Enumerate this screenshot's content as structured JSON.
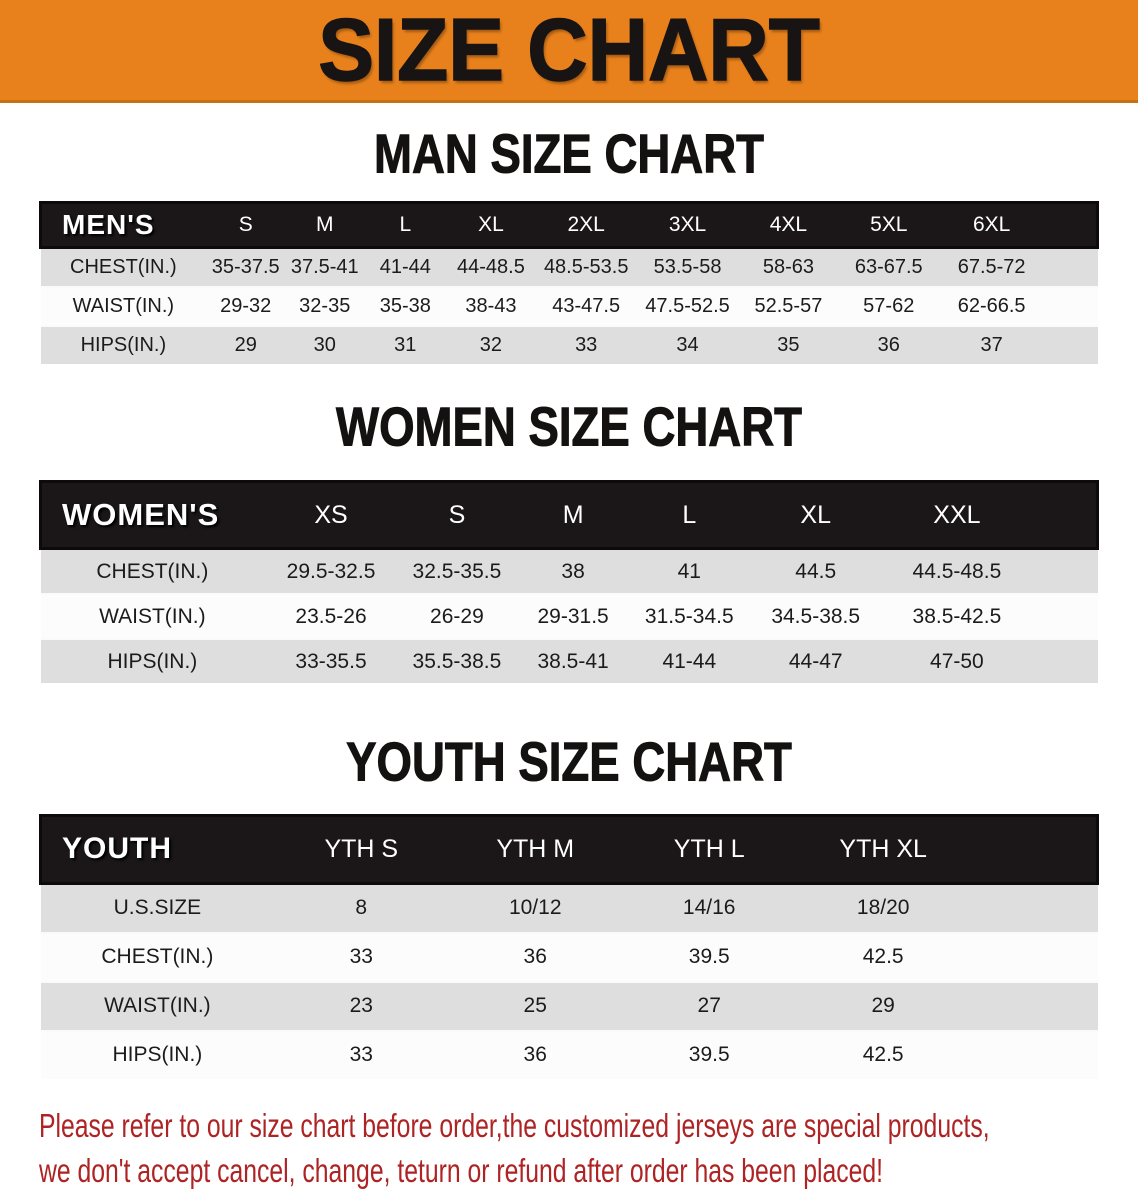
{
  "banner": {
    "title": "SIZE CHART",
    "bg_color": "#E8811C"
  },
  "sections": [
    {
      "id": "men",
      "heading": "MAN SIZE CHART",
      "table": {
        "corner_label": "MEN'S",
        "columns": [
          "S",
          "M",
          "L",
          "XL",
          "2XL",
          "3XL",
          "4XL",
          "5XL",
          "6XL"
        ],
        "rows": [
          {
            "label": "CHEST(IN.)",
            "values": [
              "35-37.5",
              "37.5-41",
              "41-44",
              "44-48.5",
              "48.5-53.5",
              "53.5-58",
              "58-63",
              "63-67.5",
              "67.5-72"
            ]
          },
          {
            "label": "WAIST(IN.)",
            "values": [
              "29-32",
              "32-35",
              "35-38",
              "38-43",
              "43-47.5",
              "47.5-52.5",
              "52.5-57",
              "57-62",
              "62-66.5"
            ]
          },
          {
            "label": "HIPS(IN.)",
            "values": [
              "29",
              "30",
              "31",
              "32",
              "33",
              "34",
              "35",
              "36",
              "37"
            ]
          }
        ]
      }
    },
    {
      "id": "women",
      "heading": "WOMEN SIZE CHART",
      "table": {
        "corner_label": "WOMEN'S",
        "columns": [
          "XS",
          "S",
          "M",
          "L",
          "XL",
          "XXL"
        ],
        "rows": [
          {
            "label": "CHEST(IN.)",
            "values": [
              "29.5-32.5",
              "32.5-35.5",
              "38",
              "41",
              "44.5",
              "44.5-48.5"
            ]
          },
          {
            "label": "WAIST(IN.)",
            "values": [
              "23.5-26",
              "26-29",
              "29-31.5",
              "31.5-34.5",
              "34.5-38.5",
              "38.5-42.5"
            ]
          },
          {
            "label": "HIPS(IN.)",
            "values": [
              "33-35.5",
              "35.5-38.5",
              "38.5-41",
              "41-44",
              "44-47",
              "47-50"
            ]
          }
        ]
      }
    },
    {
      "id": "youth",
      "heading": "YOUTH SIZE CHART",
      "table": {
        "corner_label": "YOUTH",
        "columns": [
          "YTH S",
          "YTH M",
          "YTH L",
          "YTH XL"
        ],
        "rows": [
          {
            "label": "U.S.SIZE",
            "values": [
              "8",
              "10/12",
              "14/16",
              "18/20"
            ]
          },
          {
            "label": "CHEST(IN.)",
            "values": [
              "33",
              "36",
              "39.5",
              "42.5"
            ]
          },
          {
            "label": "WAIST(IN.)",
            "values": [
              "23",
              "25",
              "27",
              "29"
            ]
          },
          {
            "label": "HIPS(IN.)",
            "values": [
              "33",
              "36",
              "39.5",
              "42.5"
            ]
          }
        ]
      }
    }
  ],
  "footnote": {
    "color": "#AE2424",
    "lines": [
      "Please refer to our size chart before order,the customized jerseys are special products,",
      "we don't accept cancel, change, teturn or refund after order has been placed!"
    ]
  }
}
